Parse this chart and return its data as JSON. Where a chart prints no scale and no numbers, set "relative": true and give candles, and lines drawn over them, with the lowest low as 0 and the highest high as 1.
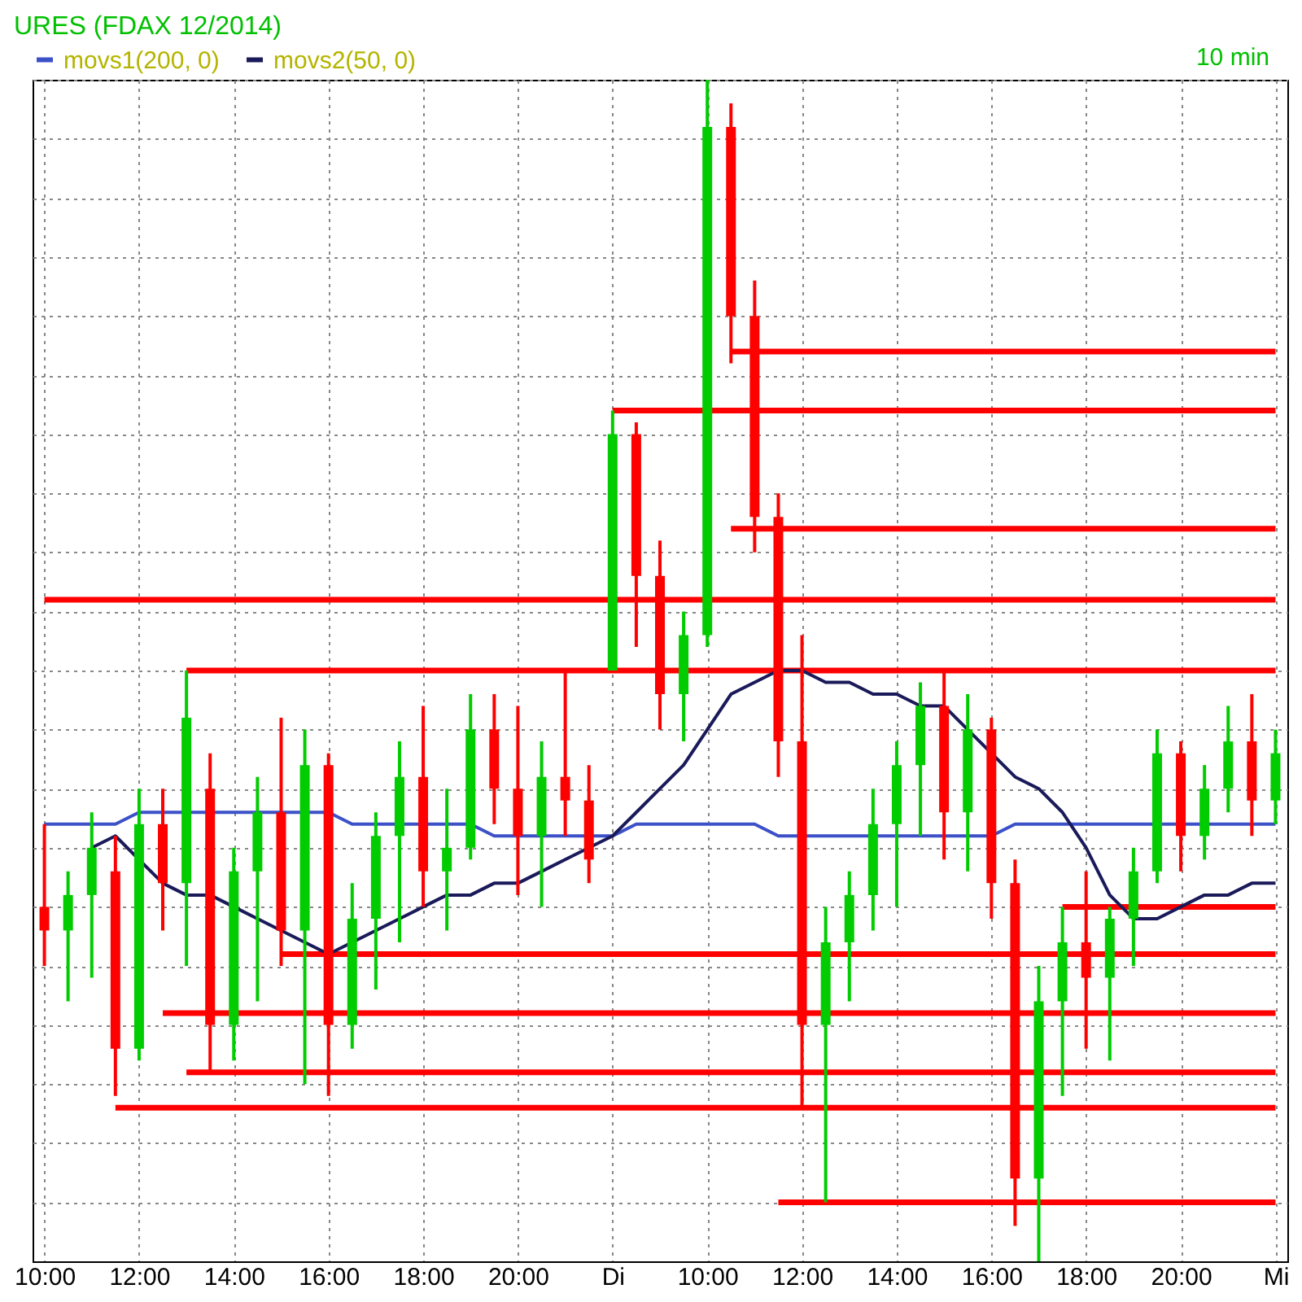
{
  "chart_data": {
    "type": "candlestick",
    "title": "URES (FDAX 12/2014)",
    "annotations": [
      "10 min"
    ],
    "relative": true,
    "grid": true,
    "legend": "top",
    "tick_labels": "x",
    "categories": [
      "10:00",
      null,
      null,
      null,
      "12:00",
      null,
      null,
      null,
      "14:00",
      null,
      null,
      null,
      "16:00",
      null,
      null,
      null,
      "18:00",
      null,
      null,
      null,
      "20:00",
      null,
      null,
      null,
      "Di",
      null,
      null,
      null,
      "10:00",
      null,
      null,
      null,
      "12:00",
      null,
      null,
      null,
      "14:00",
      null,
      null,
      null,
      "16:00",
      null,
      null,
      null,
      "18:00",
      null,
      null,
      null,
      "20:00",
      null,
      null,
      null,
      "Mi"
    ],
    "ohlc": [
      [
        0.3,
        0.37,
        0.25,
        0.28
      ],
      [
        0.28,
        0.33,
        0.22,
        0.31
      ],
      [
        0.31,
        0.38,
        0.24,
        0.35
      ],
      [
        0.33,
        0.36,
        0.14,
        0.18
      ],
      [
        0.18,
        0.4,
        0.17,
        0.37
      ],
      [
        0.37,
        0.4,
        0.28,
        0.32
      ],
      [
        0.32,
        0.5,
        0.25,
        0.46
      ],
      [
        0.4,
        0.43,
        0.16,
        0.2
      ],
      [
        0.2,
        0.35,
        0.17,
        0.33
      ],
      [
        0.33,
        0.41,
        0.22,
        0.38
      ],
      [
        0.38,
        0.46,
        0.25,
        0.28
      ],
      [
        0.28,
        0.45,
        0.15,
        0.42
      ],
      [
        0.42,
        0.43,
        0.14,
        0.2
      ],
      [
        0.2,
        0.32,
        0.18,
        0.29
      ],
      [
        0.29,
        0.38,
        0.23,
        0.36
      ],
      [
        0.36,
        0.44,
        0.27,
        0.41
      ],
      [
        0.41,
        0.47,
        0.3,
        0.33
      ],
      [
        0.33,
        0.4,
        0.28,
        0.35
      ],
      [
        0.35,
        0.48,
        0.34,
        0.45
      ],
      [
        0.45,
        0.48,
        0.37,
        0.4
      ],
      [
        0.4,
        0.47,
        0.31,
        0.36
      ],
      [
        0.36,
        0.44,
        0.3,
        0.41
      ],
      [
        0.41,
        0.5,
        0.36,
        0.39
      ],
      [
        0.39,
        0.42,
        0.32,
        0.34
      ],
      [
        0.5,
        0.72,
        0.5,
        0.7
      ],
      [
        0.7,
        0.71,
        0.52,
        0.58
      ],
      [
        0.58,
        0.61,
        0.45,
        0.48
      ],
      [
        0.48,
        0.55,
        0.44,
        0.53
      ],
      [
        0.53,
        1.0,
        0.52,
        0.96
      ],
      [
        0.96,
        0.98,
        0.76,
        0.8
      ],
      [
        0.8,
        0.83,
        0.6,
        0.63
      ],
      [
        0.63,
        0.65,
        0.41,
        0.44
      ],
      [
        0.44,
        0.53,
        0.13,
        0.2
      ],
      [
        0.2,
        0.3,
        0.05,
        0.27
      ],
      [
        0.27,
        0.33,
        0.22,
        0.31
      ],
      [
        0.31,
        0.4,
        0.28,
        0.37
      ],
      [
        0.37,
        0.44,
        0.3,
        0.42
      ],
      [
        0.42,
        0.49,
        0.36,
        0.47
      ],
      [
        0.47,
        0.5,
        0.34,
        0.38
      ],
      [
        0.38,
        0.48,
        0.33,
        0.45
      ],
      [
        0.45,
        0.46,
        0.29,
        0.32
      ],
      [
        0.32,
        0.34,
        0.03,
        0.07
      ],
      [
        0.07,
        0.25,
        0.0,
        0.22
      ],
      [
        0.22,
        0.3,
        0.14,
        0.27
      ],
      [
        0.27,
        0.33,
        0.18,
        0.24
      ],
      [
        0.24,
        0.3,
        0.17,
        0.29
      ],
      [
        0.29,
        0.35,
        0.25,
        0.33
      ],
      [
        0.33,
        0.45,
        0.32,
        0.43
      ],
      [
        0.43,
        0.44,
        0.33,
        0.36
      ],
      [
        0.36,
        0.42,
        0.34,
        0.4
      ],
      [
        0.4,
        0.47,
        0.38,
        0.44
      ],
      [
        0.44,
        0.48,
        0.36,
        0.39
      ],
      [
        0.39,
        0.45,
        0.37,
        0.43
      ]
    ],
    "colors": [
      "#ff0000",
      "#00cc00",
      "#00cc00",
      "#ff0000",
      "#00cc00",
      "#ff0000",
      "#00cc00",
      "#ff0000",
      "#00cc00",
      "#00cc00",
      "#ff0000",
      "#00cc00",
      "#ff0000",
      "#00cc00",
      "#00cc00",
      "#00cc00",
      "#ff0000",
      "#00cc00",
      "#00cc00",
      "#ff0000",
      "#ff0000",
      "#00cc00",
      "#ff0000",
      "#ff0000",
      "#00cc00",
      "#ff0000",
      "#ff0000",
      "#00cc00",
      "#00cc00",
      "#ff0000",
      "#ff0000",
      "#ff0000",
      "#ff0000",
      "#00cc00",
      "#00cc00",
      "#00cc00",
      "#00cc00",
      "#00cc00",
      "#ff0000",
      "#00cc00",
      "#ff0000",
      "#ff0000",
      "#00cc00",
      "#00cc00",
      "#ff0000",
      "#00cc00",
      "#00cc00",
      "#00cc00",
      "#ff0000",
      "#00cc00",
      "#00cc00",
      "#ff0000",
      "#00cc00"
    ],
    "series": [
      {
        "type": "line",
        "color": "#ff0000",
        "values": [
          0.56,
          0.56,
          0.56,
          0.56,
          0.56,
          0.56,
          0.56,
          0.56,
          0.56,
          0.56,
          0.56,
          0.56,
          0.56,
          0.56,
          0.56,
          0.56,
          0.56,
          0.56,
          0.56,
          0.56,
          0.56,
          0.56,
          0.56,
          0.56,
          0.56,
          0.56,
          0.56,
          0.56,
          0.56,
          0.56,
          0.56,
          0.56,
          0.56,
          0.56,
          0.56,
          0.56,
          0.56,
          0.56,
          0.56,
          0.56,
          0.56,
          0.56,
          0.56,
          0.56,
          0.56,
          0.56,
          0.56,
          0.56,
          0.56,
          0.56,
          0.56,
          0.56,
          0.56
        ]
      },
      {
        "type": "line",
        "color": "#ff0000",
        "values": [
          null,
          null,
          null,
          null,
          null,
          null,
          0.5,
          0.5,
          0.5,
          0.5,
          0.5,
          0.5,
          0.5,
          0.5,
          0.5,
          0.5,
          0.5,
          0.5,
          0.5,
          0.5,
          0.5,
          0.5,
          0.5,
          0.5,
          0.5,
          0.5,
          0.5,
          0.5,
          0.5,
          0.5,
          0.5,
          0.5,
          0.5,
          0.5,
          0.5,
          0.5,
          0.5,
          0.5,
          0.5,
          0.5,
          0.5,
          0.5,
          0.5,
          0.5,
          0.5,
          0.5,
          0.5,
          0.5,
          0.5,
          0.5,
          0.5,
          0.5,
          0.5
        ]
      },
      {
        "type": "line",
        "color": "#ff0000",
        "values": [
          null,
          null,
          null,
          null,
          null,
          null,
          null,
          null,
          null,
          null,
          null,
          null,
          null,
          null,
          null,
          null,
          null,
          null,
          null,
          null,
          null,
          null,
          null,
          null,
          0.72,
          0.72,
          0.72,
          0.72,
          0.72,
          0.72,
          0.72,
          0.72,
          0.72,
          0.72,
          0.72,
          0.72,
          0.72,
          0.72,
          0.72,
          0.72,
          0.72,
          0.72,
          0.72,
          0.72,
          0.72,
          0.72,
          0.72,
          0.72,
          0.72,
          0.72,
          0.72,
          0.72,
          0.72
        ]
      },
      {
        "type": "line",
        "color": "#ff0000",
        "values": [
          null,
          null,
          null,
          null,
          null,
          null,
          null,
          null,
          null,
          null,
          null,
          null,
          null,
          null,
          null,
          null,
          null,
          null,
          null,
          null,
          null,
          null,
          null,
          null,
          null,
          null,
          null,
          null,
          null,
          0.77,
          0.77,
          0.77,
          0.77,
          0.77,
          0.77,
          0.77,
          0.77,
          0.77,
          0.77,
          0.77,
          0.77,
          0.77,
          0.77,
          0.77,
          0.77,
          0.77,
          0.77,
          0.77,
          0.77,
          0.77,
          0.77,
          0.77,
          0.77
        ]
      },
      {
        "type": "line",
        "color": "#ff0000",
        "values": [
          null,
          null,
          null,
          null,
          null,
          null,
          null,
          null,
          null,
          null,
          null,
          null,
          null,
          null,
          null,
          null,
          null,
          null,
          null,
          null,
          null,
          null,
          null,
          null,
          null,
          null,
          null,
          null,
          null,
          0.62,
          0.62,
          0.62,
          0.62,
          0.62,
          0.62,
          0.62,
          0.62,
          0.62,
          0.62,
          0.62,
          0.62,
          0.62,
          0.62,
          0.62,
          0.62,
          0.62,
          0.62,
          0.62,
          0.62,
          0.62,
          0.62,
          0.62,
          0.62
        ]
      },
      {
        "type": "line",
        "color": "#ff0000",
        "values": [
          null,
          null,
          null,
          null,
          null,
          null,
          null,
          null,
          null,
          null,
          0.26,
          0.26,
          0.26,
          0.26,
          0.26,
          0.26,
          0.26,
          0.26,
          0.26,
          0.26,
          0.26,
          0.26,
          0.26,
          0.26,
          0.26,
          0.26,
          0.26,
          0.26,
          0.26,
          0.26,
          0.26,
          0.26,
          0.26,
          0.26,
          0.26,
          0.26,
          0.26,
          0.26,
          0.26,
          0.26,
          0.26,
          0.26,
          0.26,
          0.26,
          0.26,
          0.26,
          0.26,
          0.26,
          0.26,
          0.26,
          0.26,
          0.26,
          0.26
        ]
      },
      {
        "type": "line",
        "color": "#ff0000",
        "values": [
          null,
          null,
          null,
          null,
          null,
          0.21,
          0.21,
          0.21,
          0.21,
          0.21,
          0.21,
          0.21,
          0.21,
          0.21,
          0.21,
          0.21,
          0.21,
          0.21,
          0.21,
          0.21,
          0.21,
          0.21,
          0.21,
          0.21,
          0.21,
          0.21,
          0.21,
          0.21,
          0.21,
          0.21,
          0.21,
          0.21,
          0.21,
          0.21,
          0.21,
          0.21,
          0.21,
          0.21,
          0.21,
          0.21,
          0.21,
          0.21,
          0.21,
          0.21,
          0.21,
          0.21,
          0.21,
          0.21,
          0.21,
          0.21,
          0.21,
          0.21,
          0.21
        ]
      },
      {
        "type": "line",
        "color": "#ff0000",
        "values": [
          null,
          null,
          null,
          null,
          null,
          null,
          0.16,
          0.16,
          0.16,
          0.16,
          0.16,
          0.16,
          0.16,
          0.16,
          0.16,
          0.16,
          0.16,
          0.16,
          0.16,
          0.16,
          0.16,
          0.16,
          0.16,
          0.16,
          0.16,
          0.16,
          0.16,
          0.16,
          0.16,
          0.16,
          0.16,
          0.16,
          0.16,
          0.16,
          0.16,
          0.16,
          0.16,
          0.16,
          0.16,
          0.16,
          0.16,
          0.16,
          0.16,
          0.16,
          0.16,
          0.16,
          0.16,
          0.16,
          0.16,
          0.16,
          0.16,
          0.16,
          0.16
        ]
      },
      {
        "type": "line",
        "color": "#ff0000",
        "values": [
          null,
          null,
          null,
          0.13,
          0.13,
          0.13,
          0.13,
          0.13,
          0.13,
          0.13,
          0.13,
          0.13,
          0.13,
          0.13,
          0.13,
          0.13,
          0.13,
          0.13,
          0.13,
          0.13,
          0.13,
          0.13,
          0.13,
          0.13,
          0.13,
          0.13,
          0.13,
          0.13,
          0.13,
          0.13,
          0.13,
          0.13,
          0.13,
          0.13,
          0.13,
          0.13,
          0.13,
          0.13,
          0.13,
          0.13,
          0.13,
          0.13,
          0.13,
          0.13,
          0.13,
          0.13,
          0.13,
          0.13,
          0.13,
          0.13,
          0.13,
          0.13,
          0.13
        ]
      },
      {
        "type": "line",
        "color": "#ff0000",
        "values": [
          null,
          null,
          null,
          null,
          null,
          null,
          null,
          null,
          null,
          null,
          null,
          null,
          null,
          null,
          null,
          null,
          null,
          null,
          null,
          null,
          null,
          null,
          null,
          null,
          null,
          null,
          null,
          null,
          null,
          null,
          null,
          0.05,
          0.05,
          0.05,
          0.05,
          0.05,
          0.05,
          0.05,
          0.05,
          0.05,
          0.05,
          0.05,
          0.05,
          0.05,
          0.05,
          0.05,
          0.05,
          0.05,
          0.05,
          0.05,
          0.05,
          0.05,
          0.05
        ]
      },
      {
        "type": "line",
        "color": "#ff0000",
        "values": [
          null,
          null,
          null,
          null,
          null,
          null,
          null,
          null,
          null,
          null,
          null,
          null,
          null,
          null,
          null,
          null,
          null,
          null,
          null,
          null,
          null,
          null,
          null,
          null,
          null,
          null,
          null,
          null,
          null,
          null,
          null,
          null,
          null,
          null,
          null,
          null,
          null,
          null,
          null,
          null,
          null,
          null,
          null,
          0.3,
          0.3,
          0.3,
          0.3,
          0.3,
          0.3,
          0.3,
          0.3,
          0.3,
          0.3
        ]
      },
      {
        "type": "line",
        "name": "movs1(200, 0)",
        "color": "#3c50c8",
        "values": [
          0.37,
          0.37,
          0.37,
          0.37,
          0.38,
          0.38,
          0.38,
          0.38,
          0.38,
          0.38,
          0.38,
          0.38,
          0.38,
          0.37,
          0.37,
          0.37,
          0.37,
          0.37,
          0.37,
          0.36,
          0.36,
          0.36,
          0.36,
          0.36,
          0.36,
          0.37,
          0.37,
          0.37,
          0.37,
          0.37,
          0.37,
          0.36,
          0.36,
          0.36,
          0.36,
          0.36,
          0.36,
          0.36,
          0.36,
          0.36,
          0.36,
          0.37,
          0.37,
          0.37,
          0.37,
          0.37,
          0.37,
          0.37,
          0.37,
          0.37,
          0.37,
          0.37,
          0.37
        ]
      },
      {
        "type": "line",
        "name": "movs2(50, 0)",
        "color": "#1a1a5a",
        "values": [
          null,
          null,
          0.35,
          0.36,
          0.34,
          0.32,
          0.31,
          0.31,
          0.3,
          0.29,
          0.28,
          0.27,
          0.26,
          0.27,
          0.28,
          0.29,
          0.3,
          0.31,
          0.31,
          0.32,
          0.32,
          0.33,
          0.34,
          0.35,
          0.36,
          0.38,
          0.4,
          0.42,
          0.45,
          0.48,
          0.49,
          0.5,
          0.5,
          0.49,
          0.49,
          0.48,
          0.48,
          0.47,
          0.47,
          0.45,
          0.43,
          0.41,
          0.4,
          0.38,
          0.35,
          0.31,
          0.29,
          0.29,
          0.3,
          0.31,
          0.31,
          0.32,
          0.32
        ]
      }
    ]
  }
}
